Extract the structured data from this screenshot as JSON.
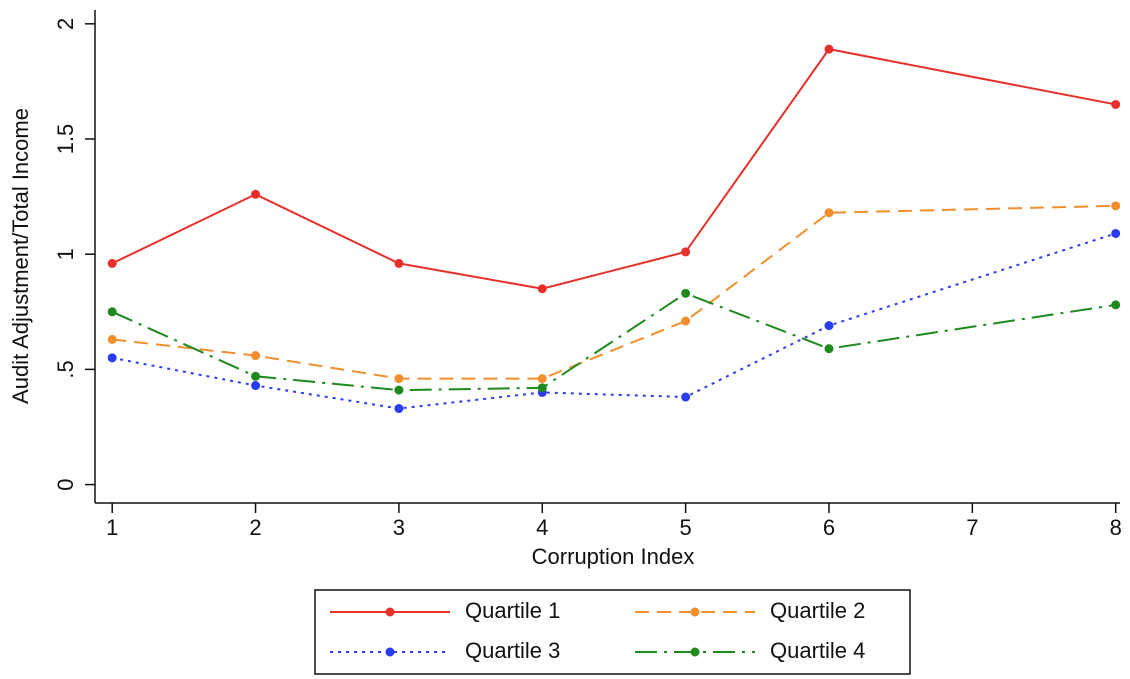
{
  "chart_data": {
    "type": "line",
    "x_label": "Corruption Index",
    "y_label": "Audit Adjustment/Total Income",
    "x": [
      1,
      2,
      3,
      4,
      5,
      6,
      8
    ],
    "series": [
      {
        "name": "Quartile 1",
        "color": "#e8302b",
        "dash": "solid",
        "values": [
          0.96,
          1.26,
          0.96,
          0.85,
          1.01,
          1.89,
          1.65
        ]
      },
      {
        "name": "Quartile 2",
        "color": "#f28e2b",
        "dash": "dashed",
        "values": [
          0.63,
          0.56,
          0.46,
          0.46,
          0.71,
          1.18,
          1.21
        ]
      },
      {
        "name": "Quartile 3",
        "color": "#2a3cf0",
        "dash": "dotted",
        "values": [
          0.55,
          0.43,
          0.33,
          0.4,
          0.38,
          0.69,
          1.09
        ]
      },
      {
        "name": "Quartile 4",
        "color": "#1e8a1e",
        "dash": "dashdot",
        "values": [
          0.75,
          0.47,
          0.41,
          0.42,
          0.83,
          0.59,
          0.78
        ]
      }
    ],
    "xlim": [
      0.88,
      8.03
    ],
    "xticks": [
      1,
      2,
      3,
      4,
      5,
      6,
      7,
      8
    ],
    "ylim": [
      -0.08,
      2.06
    ],
    "yticks": [
      0,
      {
        "value": 0.5,
        "label": ".5"
      },
      1,
      1.5,
      2
    ],
    "grid": false
  }
}
